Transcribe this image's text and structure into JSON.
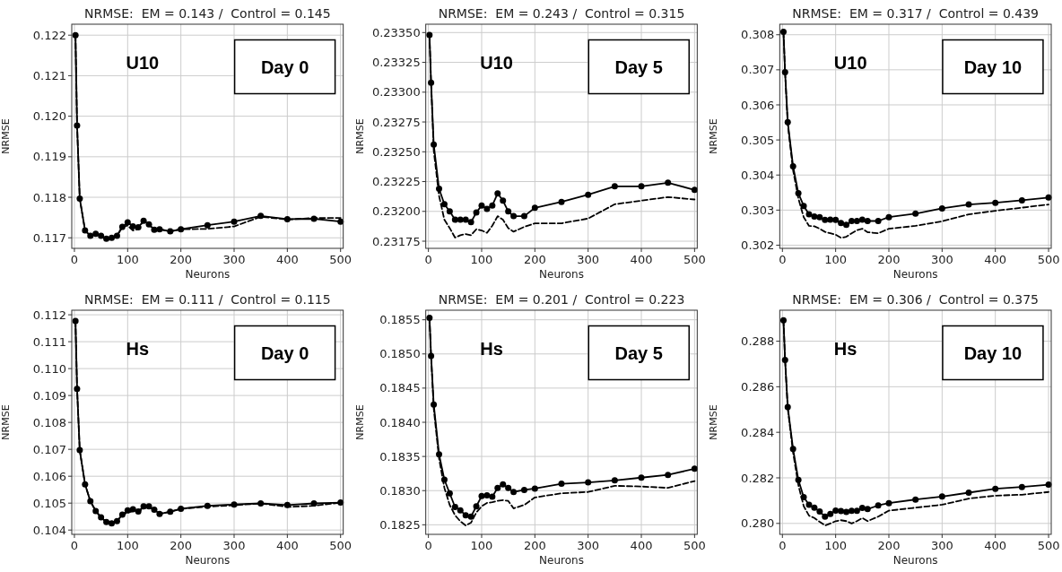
{
  "chart_data": [
    {
      "type": "line",
      "title": "NRMSE:  EM = 0.143 /  Control = 0.145",
      "xlabel": "Neurons",
      "ylabel": "NRMSE",
      "annotations": [
        "U10",
        "Day 0"
      ],
      "grid": true,
      "xlim": [
        -5,
        505
      ],
      "xticks": [
        0,
        100,
        200,
        300,
        400,
        500
      ],
      "ylim": [
        0.11674,
        0.12227
      ],
      "yticks": [
        0.117,
        0.118,
        0.119,
        {
          "value": 0.12,
          "label": "0.120"
        },
        0.121,
        0.122
      ],
      "x": [
        2,
        5,
        10,
        20,
        30,
        40,
        50,
        60,
        70,
        80,
        90,
        100,
        110,
        120,
        130,
        140,
        150,
        160,
        180,
        200,
        250,
        300,
        350,
        400,
        450,
        500
      ],
      "series": [
        {
          "color": "#000000",
          "marker": "circle",
          "line_style": "solid",
          "values": [
            0.122,
            0.11977,
            0.11797,
            0.11718,
            0.11705,
            0.1171,
            0.11705,
            0.11698,
            0.117,
            0.11705,
            0.11727,
            0.11738,
            0.11728,
            0.11726,
            0.11742,
            0.11733,
            0.1172,
            0.11721,
            0.11716,
            0.11721,
            0.11731,
            0.1174,
            0.11754,
            0.11746,
            0.11747,
            0.1174
          ]
        },
        {
          "color": "#000000",
          "marker": "none",
          "line_style": "dashed",
          "values": [
            0.122,
            0.11977,
            0.11797,
            0.11718,
            0.11705,
            0.1171,
            0.11705,
            0.11698,
            0.117,
            0.11705,
            0.11727,
            0.1173,
            0.11718,
            0.11722,
            0.11742,
            0.11733,
            0.1172,
            0.11721,
            0.11716,
            0.11721,
            0.11722,
            0.11728,
            0.11752,
            0.11745,
            0.11749,
            0.11749
          ]
        }
      ]
    },
    {
      "type": "line",
      "title": "NRMSE:  EM = 0.243 /  Control = 0.315",
      "xlabel": "Neurons",
      "ylabel": "NRMSE",
      "annotations": [
        "U10",
        "Day 5"
      ],
      "grid": true,
      "xlim": [
        -5,
        505
      ],
      "xticks": [
        0,
        100,
        200,
        300,
        400,
        500
      ],
      "ylim": [
        0.23169,
        0.23357
      ],
      "yticks": [
        {
          "value": 0.23175,
          "label": "0.23175"
        },
        {
          "value": 0.232,
          "label": "0.23200"
        },
        {
          "value": 0.23225,
          "label": "0.23225"
        },
        {
          "value": 0.2325,
          "label": "0.23250"
        },
        {
          "value": 0.23275,
          "label": "0.23275"
        },
        {
          "value": 0.233,
          "label": "0.23300"
        },
        {
          "value": 0.23325,
          "label": "0.23325"
        },
        {
          "value": 0.2335,
          "label": "0.23350"
        }
      ],
      "x": [
        2,
        5,
        10,
        20,
        30,
        40,
        50,
        60,
        70,
        80,
        90,
        100,
        110,
        120,
        130,
        140,
        150,
        160,
        180,
        200,
        250,
        300,
        350,
        400,
        450,
        500
      ],
      "series": [
        {
          "color": "#000000",
          "marker": "circle",
          "line_style": "solid",
          "values": [
            0.23348,
            0.23308,
            0.23256,
            0.23219,
            0.23206,
            0.232,
            0.23193,
            0.23193,
            0.23193,
            0.23191,
            0.23199,
            0.23205,
            0.23202,
            0.23205,
            0.23215,
            0.23209,
            0.232,
            0.23196,
            0.23196,
            0.23203,
            0.23208,
            0.23214,
            0.23221,
            0.23221,
            0.23224,
            0.23218
          ]
        },
        {
          "color": "#000000",
          "marker": "none",
          "line_style": "dashed",
          "values": [
            0.23348,
            0.23308,
            0.23251,
            0.23213,
            0.23193,
            0.23186,
            0.23178,
            0.2318,
            0.23181,
            0.2318,
            0.23185,
            0.23184,
            0.23182,
            0.23188,
            0.23196,
            0.23193,
            0.23186,
            0.23183,
            0.23187,
            0.2319,
            0.2319,
            0.23194,
            0.23206,
            0.23209,
            0.23212,
            0.2321
          ]
        }
      ]
    },
    {
      "type": "line",
      "title": "NRMSE:  EM = 0.317 /  Control = 0.439",
      "xlabel": "Neurons",
      "ylabel": "NRMSE",
      "annotations": [
        "U10",
        "Day 10"
      ],
      "grid": true,
      "xlim": [
        -5,
        505
      ],
      "xticks": [
        0,
        100,
        200,
        300,
        400,
        500
      ],
      "ylim": [
        0.30191,
        0.3083
      ],
      "yticks": [
        0.302,
        0.303,
        0.304,
        0.305,
        0.306,
        0.307,
        0.308
      ],
      "x": [
        2,
        5,
        10,
        20,
        30,
        40,
        50,
        60,
        70,
        80,
        90,
        100,
        110,
        120,
        130,
        140,
        150,
        160,
        180,
        200,
        250,
        300,
        350,
        400,
        450,
        500
      ],
      "series": [
        {
          "color": "#000000",
          "marker": "circle",
          "line_style": "solid",
          "values": [
            0.30808,
            0.30693,
            0.30551,
            0.30425,
            0.30348,
            0.30312,
            0.30288,
            0.30282,
            0.3028,
            0.30272,
            0.30273,
            0.30272,
            0.30263,
            0.30258,
            0.30269,
            0.30269,
            0.30273,
            0.30269,
            0.30269,
            0.3028,
            0.3029,
            0.30305,
            0.30316,
            0.30321,
            0.30328,
            0.30336
          ]
        },
        {
          "color": "#000000",
          "marker": "none",
          "line_style": "dashed",
          "values": [
            0.30808,
            0.30693,
            0.30545,
            0.30414,
            0.30333,
            0.3028,
            0.30255,
            0.30254,
            0.30247,
            0.30238,
            0.30234,
            0.3023,
            0.30221,
            0.30224,
            0.30234,
            0.30243,
            0.30247,
            0.30237,
            0.30234,
            0.30247,
            0.30255,
            0.30268,
            0.30288,
            0.30298,
            0.30307,
            0.30316
          ]
        }
      ]
    },
    {
      "type": "line",
      "title": "NRMSE:  EM = 0.111 /  Control = 0.115",
      "xlabel": "Neurons",
      "ylabel": "NRMSE",
      "annotations": [
        "Hs",
        "Day 0"
      ],
      "grid": true,
      "xlim": [
        -5,
        505
      ],
      "xticks": [
        0,
        100,
        200,
        300,
        400,
        500
      ],
      "ylim": [
        0.10384,
        0.11217
      ],
      "yticks": [
        0.104,
        0.105,
        0.106,
        0.107,
        0.108,
        0.109,
        {
          "value": 0.11,
          "label": "0.110"
        },
        0.111,
        0.112
      ],
      "x": [
        2,
        5,
        10,
        20,
        30,
        40,
        50,
        60,
        70,
        80,
        90,
        100,
        110,
        120,
        130,
        140,
        150,
        160,
        180,
        200,
        250,
        300,
        350,
        400,
        450,
        500
      ],
      "series": [
        {
          "color": "#000000",
          "marker": "circle",
          "line_style": "solid",
          "values": [
            0.11177,
            0.10925,
            0.10697,
            0.1057,
            0.10507,
            0.10471,
            0.10447,
            0.1043,
            0.10425,
            0.10433,
            0.10457,
            0.10473,
            0.10477,
            0.10469,
            0.10488,
            0.10488,
            0.10476,
            0.1046,
            0.10468,
            0.10479,
            0.1049,
            0.10495,
            0.10499,
            0.10493,
            0.10499,
            0.10502
          ]
        },
        {
          "color": "#000000",
          "marker": "none",
          "line_style": "dashed",
          "values": [
            0.11177,
            0.10925,
            0.10697,
            0.1057,
            0.10507,
            0.10471,
            0.10447,
            0.1043,
            0.10425,
            0.10433,
            0.10457,
            0.10465,
            0.1047,
            0.10469,
            0.1048,
            0.10486,
            0.10476,
            0.1046,
            0.10468,
            0.10479,
            0.10487,
            0.10492,
            0.10499,
            0.10486,
            0.1049,
            0.10502
          ]
        }
      ]
    },
    {
      "type": "line",
      "title": "NRMSE:  EM = 0.201 /  Control = 0.223",
      "xlabel": "Neurons",
      "ylabel": "NRMSE",
      "annotations": [
        "Hs",
        "Day 5"
      ],
      "grid": true,
      "xlim": [
        -5,
        505
      ],
      "xticks": [
        0,
        100,
        200,
        300,
        400,
        500
      ],
      "ylim": [
        0.18236,
        0.18564
      ],
      "yticks": [
        0.1825,
        {
          "value": 0.183,
          "label": "0.1830"
        },
        0.1835,
        {
          "value": 0.184,
          "label": "0.1840"
        },
        0.1845,
        {
          "value": 0.185,
          "label": "0.1850"
        },
        0.1855
      ],
      "x": [
        2,
        5,
        10,
        20,
        30,
        40,
        50,
        60,
        70,
        80,
        90,
        100,
        110,
        120,
        130,
        140,
        150,
        160,
        180,
        200,
        250,
        300,
        350,
        400,
        450,
        500
      ],
      "series": [
        {
          "color": "#000000",
          "marker": "circle",
          "line_style": "solid",
          "values": [
            0.18553,
            0.18497,
            0.18426,
            0.18353,
            0.18316,
            0.18296,
            0.18276,
            0.18271,
            0.18264,
            0.18262,
            0.18277,
            0.18292,
            0.18293,
            0.18291,
            0.18304,
            0.18309,
            0.18304,
            0.18298,
            0.18301,
            0.18303,
            0.1831,
            0.18312,
            0.18315,
            0.18319,
            0.18323,
            0.18332
          ]
        },
        {
          "color": "#000000",
          "marker": "none",
          "line_style": "dashed",
          "values": [
            0.18553,
            0.18497,
            0.1842,
            0.18347,
            0.18304,
            0.18279,
            0.18264,
            0.18255,
            0.18249,
            0.18253,
            0.18268,
            0.18277,
            0.18282,
            0.18283,
            0.18285,
            0.18286,
            0.18285,
            0.18274,
            0.18279,
            0.1829,
            0.18296,
            0.18298,
            0.18307,
            0.18306,
            0.18304,
            0.18314
          ]
        }
      ]
    },
    {
      "type": "line",
      "title": "NRMSE:  EM = 0.306 /  Control = 0.375",
      "xlabel": "Neurons",
      "ylabel": "NRMSE",
      "annotations": [
        "Hs",
        "Day 10"
      ],
      "grid": true,
      "xlim": [
        -5,
        505
      ],
      "xticks": [
        0,
        100,
        200,
        300,
        400,
        500
      ],
      "ylim": [
        0.27952,
        0.28936
      ],
      "yticks": [
        {
          "value": 0.28,
          "label": "0.280"
        },
        0.282,
        0.284,
        0.286,
        0.288
      ],
      "x": [
        2,
        5,
        10,
        20,
        30,
        40,
        50,
        60,
        70,
        80,
        90,
        100,
        110,
        120,
        130,
        140,
        150,
        160,
        180,
        200,
        250,
        300,
        350,
        400,
        450,
        500
      ],
      "series": [
        {
          "color": "#000000",
          "marker": "circle",
          "line_style": "solid",
          "values": [
            0.28892,
            0.28718,
            0.28511,
            0.28327,
            0.28191,
            0.28115,
            0.28082,
            0.28069,
            0.28052,
            0.2803,
            0.28042,
            0.28056,
            0.28054,
            0.2805,
            0.28055,
            0.28055,
            0.28068,
            0.28063,
            0.28079,
            0.28089,
            0.28105,
            0.28118,
            0.28135,
            0.28152,
            0.2816,
            0.2817
          ]
        },
        {
          "color": "#000000",
          "marker": "none",
          "line_style": "dashed",
          "values": [
            0.28892,
            0.28718,
            0.28505,
            0.28312,
            0.28168,
            0.28076,
            0.28034,
            0.28024,
            0.28007,
            0.27991,
            0.28,
            0.2801,
            0.28014,
            0.2801,
            0.28,
            0.2801,
            0.28024,
            0.2801,
            0.2803,
            0.28056,
            0.28069,
            0.28082,
            0.28109,
            0.28122,
            0.28126,
            0.28138
          ]
        }
      ]
    }
  ]
}
